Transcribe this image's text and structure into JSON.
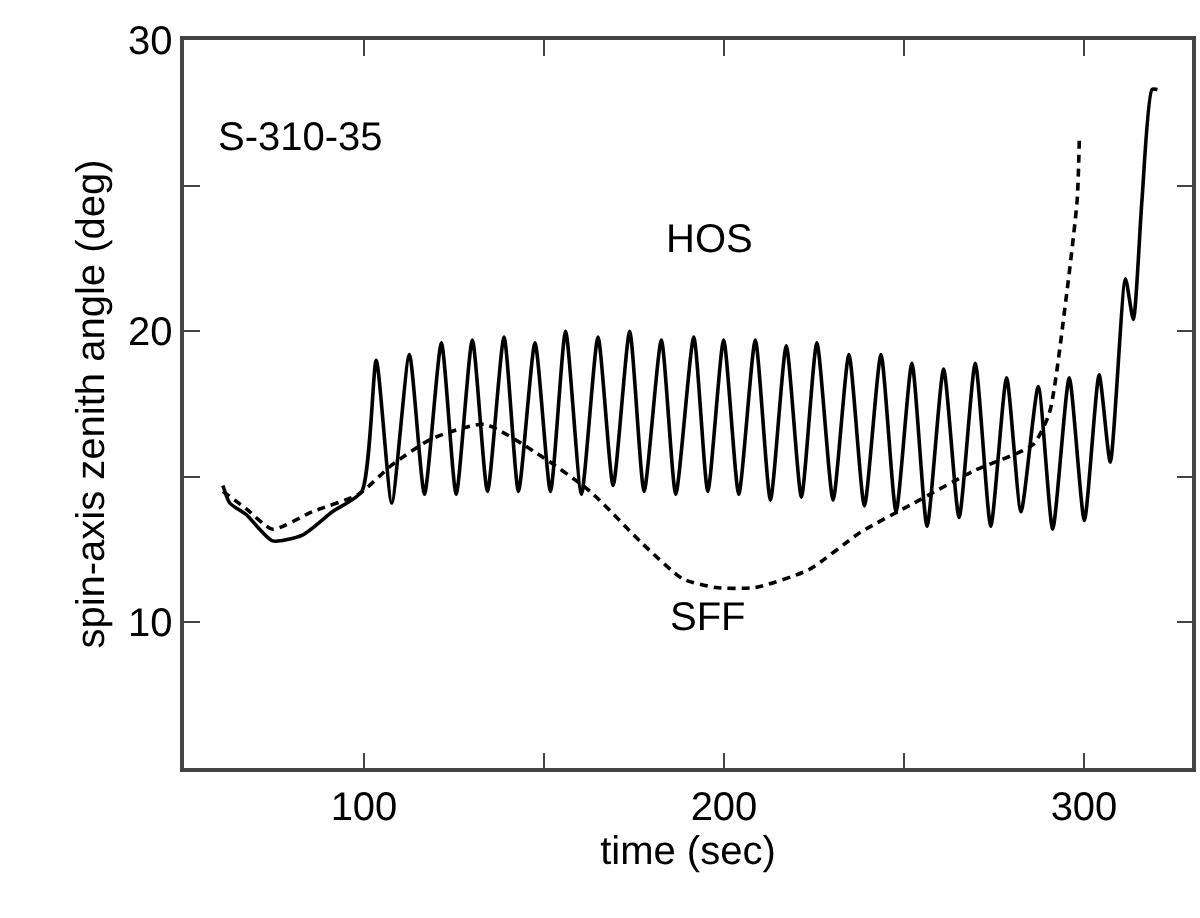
{
  "chart_data": {
    "type": "line",
    "xlabel": "time (sec)",
    "ylabel": "spin-axis zenith angle (deg)",
    "annotations": [
      "S-310-35"
    ],
    "xlim": [
      50,
      330
    ],
    "xticks": [
      100,
      {
        "value": 150,
        "label": null
      },
      200,
      {
        "value": 250,
        "label": null
      },
      300
    ],
    "ylim": [
      5,
      30
    ],
    "yticks": [
      {
        "value": 5,
        "label": null
      },
      10,
      {
        "value": 15,
        "label": null
      },
      20,
      {
        "value": 25,
        "label": null
      },
      30
    ],
    "legend": false,
    "marker": "none",
    "series": [
      {
        "name": "HOS",
        "color": "#000000",
        "line_style": "solid",
        "x": [
          60.8,
          62.7,
          67.3,
          74.6,
          82.9,
          91.2,
          99.4,
          103.4,
          107.7,
          112.6,
          116.8,
          121.5,
          125.6,
          130.1,
          134.3,
          138.9,
          142.9,
          147.5,
          151.8,
          156.0,
          160.4,
          165.0,
          169.2,
          173.8,
          177.8,
          182.6,
          186.6,
          191.6,
          195.5,
          199.9,
          204.1,
          208.7,
          212.9,
          217.3,
          221.5,
          225.8,
          230.3,
          234.7,
          239.0,
          243.6,
          247.8,
          252.2,
          256.4,
          261.0,
          265.3,
          269.8,
          274.1,
          278.5,
          282.5,
          287.3,
          291.3,
          295.9,
          300.1,
          304.2,
          307.3,
          311.5,
          313.7,
          316.1,
          318.9,
          320.4
        ],
        "values": [
          14.7,
          14.1,
          13.7,
          12.8,
          13.0,
          13.8,
          14.5,
          19.0,
          14.1,
          19.2,
          14.4,
          19.6,
          14.4,
          19.7,
          14.5,
          19.8,
          14.5,
          19.6,
          14.5,
          20.0,
          14.4,
          19.8,
          14.7,
          20.0,
          14.5,
          19.7,
          14.4,
          19.8,
          14.5,
          19.7,
          14.4,
          19.7,
          14.2,
          19.5,
          14.3,
          19.6,
          14.2,
          19.2,
          14.0,
          19.2,
          13.8,
          18.9,
          13.3,
          18.7,
          13.6,
          18.9,
          13.3,
          18.4,
          13.8,
          18.1,
          13.2,
          18.4,
          13.5,
          18.5,
          15.5,
          21.8,
          20.4,
          24.5,
          28.3,
          28.3
        ]
      },
      {
        "name": "SFF",
        "color": "#000000",
        "line_style": "dashed",
        "x": [
          60.8,
          67.3,
          74.6,
          85.6,
          98.5,
          107.7,
          118.7,
          133.4,
          148.1,
          162.8,
          177.4,
          188.5,
          197.7,
          208.7,
          223.4,
          238.0,
          252.8,
          269.3,
          285.8,
          290.4,
          295.0,
          298.1,
          298.7
        ],
        "values": [
          14.5,
          13.9,
          13.2,
          13.8,
          14.4,
          15.4,
          16.3,
          16.8,
          15.8,
          14.5,
          12.7,
          11.5,
          11.2,
          11.2,
          11.8,
          13.1,
          14.1,
          15.2,
          16.1,
          17.2,
          21.1,
          24.5,
          26.6
        ]
      }
    ]
  }
}
